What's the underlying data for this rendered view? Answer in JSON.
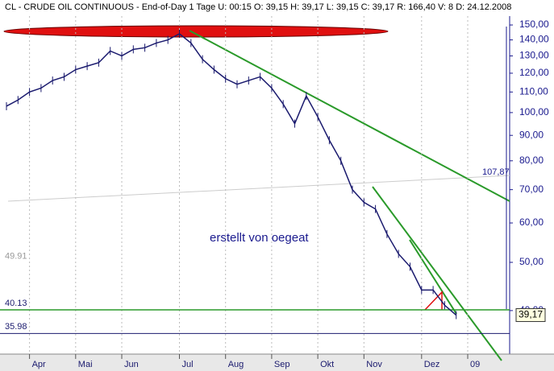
{
  "chart_data": {
    "type": "line",
    "title": "CL - CRUDE OIL CONTINUOUS - End-of-Day 1 Tage U: 00:15 O: 39,15 H: 39,17 L: 39,15 C: 39,17 R: 166,40 V: 8 D: 24.12.2008",
    "categories": [
      null,
      null,
      "Apr",
      null,
      null,
      null,
      "Mai",
      null,
      null,
      null,
      "Jun",
      null,
      null,
      null,
      null,
      "Jul",
      null,
      null,
      null,
      "Aug",
      null,
      null,
      null,
      "Sep",
      null,
      null,
      null,
      "Okt",
      null,
      null,
      null,
      "Nov",
      null,
      null,
      null,
      null,
      "Dez",
      null,
      null,
      null,
      "09"
    ],
    "series": [
      {
        "name": "CL",
        "color": "#1a1a6e",
        "values": [
          103,
          106,
          110,
          112,
          116,
          118,
          122,
          124,
          126,
          133,
          130,
          134,
          135,
          138,
          140,
          144,
          138,
          128,
          122,
          117,
          114,
          116,
          118,
          112,
          104,
          95,
          108,
          98,
          88,
          80,
          70,
          66,
          64,
          57,
          52,
          49,
          44,
          44,
          41,
          39.17,
          null
        ]
      }
    ],
    "log_scale": true,
    "ylim": [
      32.7,
      156.3
    ],
    "yticks": [
      {
        "value": 40,
        "label": "40,00"
      },
      {
        "value": 50,
        "label": "50,00"
      },
      {
        "value": 60,
        "label": "60,00"
      },
      {
        "value": 70,
        "label": "70,00"
      },
      {
        "value": 80,
        "label": "80,00"
      },
      {
        "value": 90,
        "label": "90,00"
      },
      {
        "value": 100,
        "label": "100,00"
      },
      {
        "value": 110,
        "label": "110,00"
      },
      {
        "value": 120,
        "label": "120,00"
      },
      {
        "value": 130,
        "label": "130,00"
      },
      {
        "value": 140,
        "label": "140,00"
      },
      {
        "value": 150,
        "label": "150,00"
      }
    ],
    "levels": [
      {
        "value": 49.91,
        "color": "#999999"
      },
      {
        "value": 40.13,
        "color": "#2a9a2a"
      },
      {
        "value": 35.98,
        "color": "#1a1a6e"
      }
    ],
    "last_price": {
      "value": 39.17,
      "label": "39,17"
    },
    "annotations": [
      "107,87",
      "erstellt von oegeat"
    ]
  }
}
